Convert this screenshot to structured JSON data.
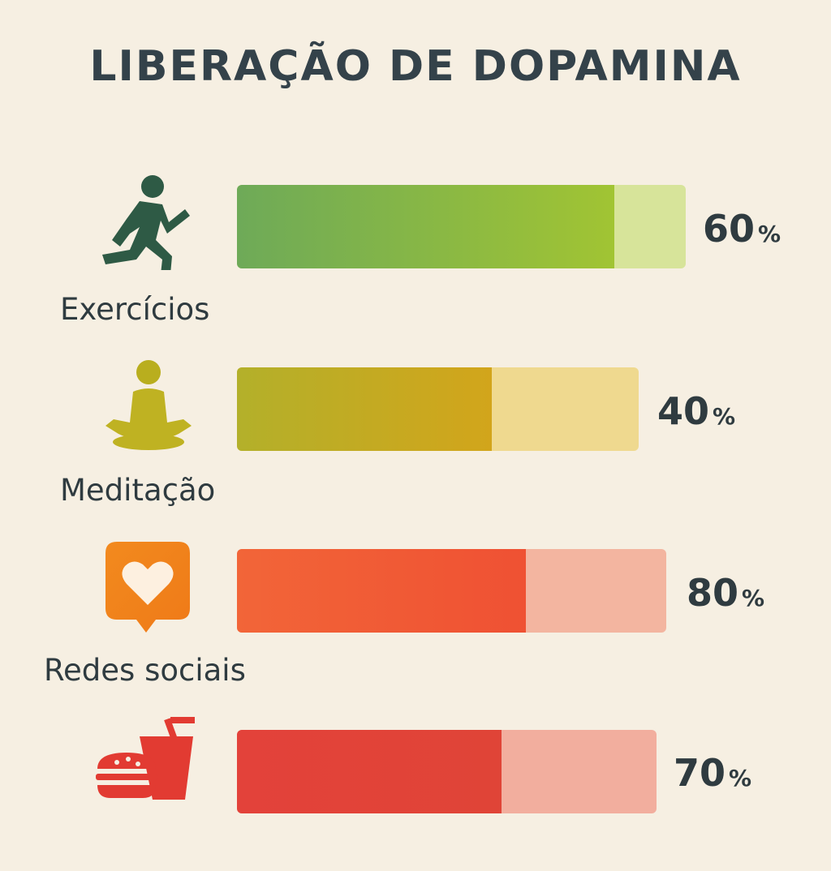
{
  "title": "LIBERAÇÃO DE DOPAMINA",
  "chart_data": {
    "type": "bar",
    "title": "LIBERAÇÃO DE DOPAMINA",
    "categories": [
      "Exercícios",
      "Meditação",
      "Redes sociais",
      ""
    ],
    "values": [
      60,
      40,
      80,
      70
    ],
    "unit": "%",
    "orientation": "horizontal",
    "icons": [
      "running-person-icon",
      "meditation-icon",
      "heart-notification-icon",
      "fast-food-icon"
    ],
    "colors": {
      "fill": [
        "#8fb83a",
        "#c9a820",
        "#ef5a35",
        "#e0463a"
      ],
      "track": [
        "#d7e49a",
        "#efd98f",
        "#f3b5a0",
        "#f2ae9e"
      ]
    }
  },
  "rows": [
    {
      "label": "Exercícios",
      "value_text": "60",
      "unit": "%"
    },
    {
      "label": "Meditação",
      "value_text": "40",
      "unit": "%"
    },
    {
      "label": "Redes sociais",
      "value_text": "80",
      "unit": "%"
    },
    {
      "label": "",
      "value_text": "70",
      "unit": "%"
    }
  ]
}
